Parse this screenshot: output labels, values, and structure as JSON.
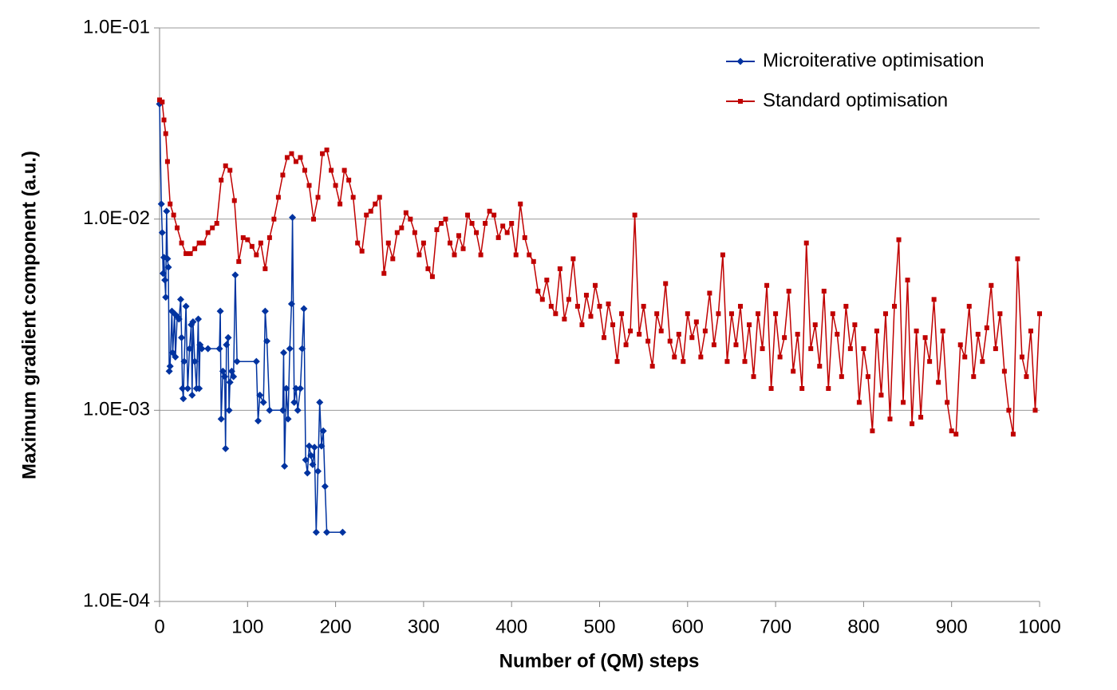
{
  "chart_data": {
    "type": "line",
    "x_label": "Number of (QM) steps",
    "y_label": "Maximum gradient component (a.u.)",
    "y_scale": "log",
    "xlim": [
      0,
      1000
    ],
    "xticks": [
      0,
      100,
      200,
      300,
      400,
      500,
      600,
      700,
      800,
      900,
      1000
    ],
    "ylim": [
      0.0001,
      0.1
    ],
    "yticks": [
      {
        "value": 0.0001,
        "label": "1.0E-04"
      },
      {
        "value": 0.001,
        "label": "1.0E-03"
      },
      {
        "value": 0.01,
        "label": "1.0E-02"
      },
      {
        "value": 0.1,
        "label": "1.0E-01"
      }
    ],
    "grid": true,
    "legend": "upper right",
    "series": [
      {
        "name": "Microiterative optimisation",
        "color": "#0033a0",
        "marker": "diamond",
        "x": [
          0,
          2,
          3,
          4,
          5,
          6,
          7,
          8,
          9,
          10,
          11,
          12,
          14,
          15,
          17,
          18,
          20,
          22,
          24,
          25,
          26,
          27,
          28,
          30,
          32,
          34,
          36,
          37,
          38,
          40,
          42,
          44,
          45,
          46,
          48,
          55,
          68,
          69,
          70,
          72,
          74,
          75,
          76,
          78,
          79,
          80,
          82,
          84,
          86,
          88,
          110,
          112,
          114,
          118,
          120,
          122,
          125,
          140,
          141,
          142,
          144,
          146,
          148,
          150,
          151,
          153,
          155,
          157,
          160,
          162,
          164,
          166,
          168,
          170,
          172,
          174,
          176,
          178,
          180,
          182,
          184,
          186,
          188,
          190,
          208
        ],
        "values": [
          0.04,
          0.012,
          0.0085,
          0.0052,
          0.0063,
          0.0048,
          0.0039,
          0.011,
          0.0062,
          0.0056,
          0.0016,
          0.0017,
          0.0033,
          0.002,
          0.0032,
          0.0019,
          0.0031,
          0.003,
          0.0038,
          0.0024,
          0.0013,
          0.00115,
          0.0018,
          0.0035,
          0.0013,
          0.0021,
          0.0028,
          0.0012,
          0.0029,
          0.0018,
          0.0013,
          0.003,
          0.0013,
          0.0022,
          0.0021,
          0.0021,
          0.0021,
          0.0033,
          0.0009,
          0.0016,
          0.0015,
          0.00063,
          0.0022,
          0.0024,
          0.001,
          0.0014,
          0.0016,
          0.0015,
          0.0051,
          0.0018,
          0.0018,
          0.00088,
          0.0012,
          0.0011,
          0.0033,
          0.0023,
          0.001,
          0.001,
          0.002,
          0.00051,
          0.0013,
          0.0009,
          0.0021,
          0.0036,
          0.0102,
          0.0011,
          0.0013,
          0.001,
          0.0013,
          0.0021,
          0.0034,
          0.00055,
          0.00047,
          0.00065,
          0.00058,
          0.00052,
          0.00064,
          0.00023,
          0.00048,
          0.0011,
          0.00065,
          0.00078,
          0.0004,
          0.00023,
          0.00023
        ]
      },
      {
        "name": "Standard optimisation",
        "color": "#c00000",
        "marker": "square",
        "x": [
          0,
          3,
          5,
          7,
          9,
          12,
          16,
          20,
          25,
          30,
          35,
          40,
          45,
          50,
          55,
          60,
          65,
          70,
          75,
          80,
          85,
          90,
          95,
          100,
          105,
          110,
          115,
          120,
          125,
          130,
          135,
          140,
          145,
          150,
          155,
          160,
          165,
          170,
          175,
          180,
          185,
          190,
          195,
          200,
          205,
          210,
          215,
          220,
          225,
          230,
          235,
          240,
          245,
          250,
          255,
          260,
          265,
          270,
          275,
          280,
          285,
          290,
          295,
          300,
          305,
          310,
          315,
          320,
          325,
          330,
          335,
          340,
          345,
          350,
          355,
          360,
          365,
          370,
          375,
          380,
          385,
          390,
          395,
          400,
          405,
          410,
          415,
          420,
          425,
          430,
          435,
          440,
          445,
          450,
          455,
          460,
          465,
          470,
          475,
          480,
          485,
          490,
          495,
          500,
          505,
          510,
          515,
          520,
          525,
          530,
          535,
          540,
          545,
          550,
          555,
          560,
          565,
          570,
          575,
          580,
          585,
          590,
          595,
          600,
          605,
          610,
          615,
          620,
          625,
          630,
          635,
          640,
          645,
          650,
          655,
          660,
          665,
          670,
          675,
          680,
          685,
          690,
          695,
          700,
          705,
          710,
          715,
          720,
          725,
          730,
          735,
          740,
          745,
          750,
          755,
          760,
          765,
          770,
          775,
          780,
          785,
          790,
          795,
          800,
          805,
          810,
          815,
          820,
          825,
          830,
          835,
          840,
          845,
          850,
          855,
          860,
          865,
          870,
          875,
          880,
          885,
          890,
          895,
          900,
          905,
          910,
          915,
          920,
          925,
          930,
          935,
          940,
          945,
          950,
          955,
          960,
          965,
          970,
          975,
          980,
          985,
          990,
          995,
          1000
        ],
        "values": [
          0.042,
          0.041,
          0.033,
          0.028,
          0.02,
          0.012,
          0.0105,
          0.009,
          0.0075,
          0.0066,
          0.0066,
          0.007,
          0.0075,
          0.0075,
          0.0085,
          0.009,
          0.0095,
          0.016,
          0.019,
          0.018,
          0.0125,
          0.006,
          0.008,
          0.0078,
          0.0072,
          0.0065,
          0.0075,
          0.0055,
          0.008,
          0.01,
          0.013,
          0.017,
          0.021,
          0.022,
          0.02,
          0.021,
          0.018,
          0.015,
          0.01,
          0.013,
          0.022,
          0.023,
          0.018,
          0.015,
          0.012,
          0.018,
          0.016,
          0.013,
          0.0075,
          0.0068,
          0.0105,
          0.011,
          0.012,
          0.013,
          0.0052,
          0.0075,
          0.0062,
          0.0085,
          0.009,
          0.0108,
          0.01,
          0.0085,
          0.0065,
          0.0075,
          0.0055,
          0.005,
          0.0088,
          0.0095,
          0.01,
          0.0075,
          0.0065,
          0.0082,
          0.007,
          0.0105,
          0.0095,
          0.0085,
          0.0065,
          0.0095,
          0.011,
          0.0105,
          0.008,
          0.0092,
          0.0085,
          0.0095,
          0.0065,
          0.012,
          0.008,
          0.0065,
          0.006,
          0.0042,
          0.0038,
          0.0048,
          0.0035,
          0.0032,
          0.0055,
          0.003,
          0.0038,
          0.0062,
          0.0035,
          0.0028,
          0.004,
          0.0031,
          0.0045,
          0.0035,
          0.0024,
          0.0036,
          0.0028,
          0.0018,
          0.0032,
          0.0022,
          0.0026,
          0.0105,
          0.0025,
          0.0035,
          0.0023,
          0.0017,
          0.0032,
          0.0026,
          0.0046,
          0.0023,
          0.0019,
          0.0025,
          0.0018,
          0.0032,
          0.0024,
          0.0029,
          0.0019,
          0.0026,
          0.0041,
          0.0022,
          0.0032,
          0.0065,
          0.0018,
          0.0032,
          0.0022,
          0.0035,
          0.0018,
          0.0028,
          0.0015,
          0.0032,
          0.0021,
          0.0045,
          0.0013,
          0.0032,
          0.0019,
          0.0024,
          0.0042,
          0.0016,
          0.0025,
          0.0013,
          0.0075,
          0.0021,
          0.0028,
          0.0017,
          0.0042,
          0.0013,
          0.0032,
          0.0025,
          0.0015,
          0.0035,
          0.0021,
          0.0028,
          0.0011,
          0.0021,
          0.0015,
          0.00078,
          0.0026,
          0.0012,
          0.0032,
          0.0009,
          0.0035,
          0.0078,
          0.0011,
          0.0048,
          0.00085,
          0.0026,
          0.00092,
          0.0024,
          0.0018,
          0.0038,
          0.0014,
          0.0026,
          0.0011,
          0.00078,
          0.00075,
          0.0022,
          0.0019,
          0.0035,
          0.0015,
          0.0025,
          0.0018,
          0.0027,
          0.0045,
          0.0021,
          0.0032,
          0.0016,
          0.001,
          0.00075,
          0.0062,
          0.0019,
          0.0015,
          0.0026,
          0.001,
          0.0032
        ]
      }
    ]
  }
}
